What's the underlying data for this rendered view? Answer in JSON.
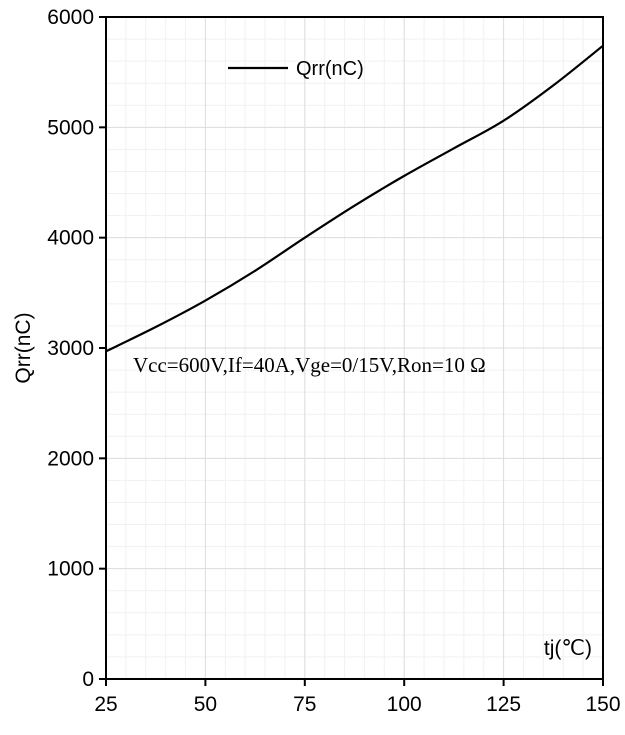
{
  "chart_data": {
    "type": "line",
    "xlabel": "tj(℃)",
    "ylabel": "Qrr(nC)",
    "xlim": [
      25,
      150
    ],
    "ylim": [
      0,
      6000
    ],
    "x_ticks": [
      25,
      50,
      75,
      100,
      125,
      150
    ],
    "y_ticks": [
      0,
      1000,
      2000,
      3000,
      4000,
      5000,
      6000
    ],
    "grid": true,
    "legend_position": "top-center",
    "annotation": "Vcc=600V,If=40A,Vge=0/15V,Ron=10 Ω",
    "series": [
      {
        "name": "Qrr(nC)",
        "color": "#000000",
        "x": [
          25,
          37.5,
          50,
          62.5,
          75,
          87.5,
          100,
          112.5,
          125,
          137.5,
          150
        ],
        "y": [
          2970,
          3190,
          3430,
          3700,
          4000,
          4290,
          4560,
          4810,
          5060,
          5380,
          5740
        ]
      }
    ]
  }
}
